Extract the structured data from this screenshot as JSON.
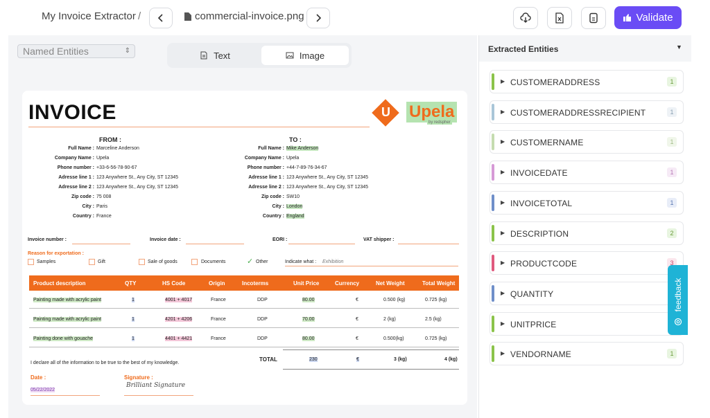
{
  "header": {
    "project": "My Invoice Extractor",
    "separator": "/",
    "file_name": "commercial-invoice.png",
    "validate_label": "Validate"
  },
  "toolbar": {
    "entity_select_value": "Named Entities",
    "tab_text_label": "Text",
    "tab_image_label": "Image",
    "active_tab": "Image"
  },
  "invoice": {
    "title": "INVOICE",
    "logo_text": "Upela",
    "logo_sub": "by redspher",
    "from": {
      "heading": "FROM :",
      "rows": [
        {
          "k": "Full Name :",
          "v": "Marceline Anderson"
        },
        {
          "k": "Company Name :",
          "v": "Upela"
        },
        {
          "k": "Phone number :",
          "v": "+33-6-56-78-90-67"
        },
        {
          "k": "Adresse line 1 :",
          "v": "123 Anywhere St., Any City, ST 12345"
        },
        {
          "k": "Adresse line 2 :",
          "v": "123 Anywhere St., Any City, ST 12345"
        },
        {
          "k": "Zip code :",
          "v": "75 008"
        },
        {
          "k": "City :",
          "v": "Paris"
        },
        {
          "k": "Country :",
          "v": "France"
        }
      ]
    },
    "to": {
      "heading": "TO :",
      "rows": [
        {
          "k": "Full Name :",
          "v": "Mike Anderson"
        },
        {
          "k": "Company Name :",
          "v": "Upela"
        },
        {
          "k": "Phone number :",
          "v": "+44-7-89-76-34-67"
        },
        {
          "k": "Adresse line 1 :",
          "v": "123 Anywhere St., Any City, ST 12345"
        },
        {
          "k": "Adresse line 2 :",
          "v": "123 Anywhere St., Any City, ST 12345"
        },
        {
          "k": "Zip code :",
          "v": "SW10"
        },
        {
          "k": "City :",
          "v": "London"
        },
        {
          "k": "Country :",
          "v": "England"
        }
      ]
    },
    "meta": {
      "invoice_number": "Invoice number :",
      "invoice_date": "Invoice date :",
      "eori": "EORI :",
      "vat_shipper": "VAT shipper :"
    },
    "reason": {
      "heading": "Reason for exportation :",
      "options": [
        "Samples",
        "Gift",
        "Sale of goods",
        "Documents",
        "Other"
      ],
      "checked": "Other",
      "indicate_label": "Indicate what :",
      "indicate_value": "Exhibition"
    },
    "table": {
      "headers": [
        "Product description",
        "QTY",
        "HS Code",
        "Origin",
        "Incoterms",
        "Unit Price",
        "Currency",
        "Net Weight",
        "Total Weight"
      ],
      "rows": [
        [
          "Painting made with acrylic paint",
          "1",
          "4001 + 4017",
          "France",
          "DDP",
          "80.00",
          "€",
          "0.500 (kg)",
          "0.725 (kg)"
        ],
        [
          "Painting made with acrylic paint",
          "1",
          "4201 + 4206",
          "France",
          "DDP",
          "70.00",
          "€",
          "2 (kg)",
          "2.5 (kg)"
        ],
        [
          "Painting done with gouache",
          "1",
          "4401 + 4421",
          "France",
          "DDP",
          "80.00",
          "€",
          "0.500(kg)",
          "0.725 (kg)"
        ]
      ]
    },
    "declaration": "I declare all of the information to be true to the best of my knowledge.",
    "total": {
      "label": "TOTAL",
      "amount": "230",
      "currency": "€",
      "net": "3 (kg)",
      "gross": "4 (kg)"
    },
    "date_label": "Date :",
    "date_value": "05/22/2022",
    "signature_label": "Signature :",
    "signature_value": "Brilliant Signature"
  },
  "entities_panel": {
    "title": "Extracted Entities",
    "items": [
      {
        "label": "CUSTOMERADDRESS",
        "count": "1",
        "color": "#8bc34a",
        "badge_bg": "#e8f5e0",
        "badge_fg": "#6a9a3a"
      },
      {
        "label": "CUSTOMERADDRESSRECIPIENT",
        "count": "1",
        "color": "#a9c6d8",
        "badge_bg": "#eef2f6",
        "badge_fg": "#8aa0b2"
      },
      {
        "label": "CUSTOMERNAME",
        "count": "1",
        "color": "#c5dcb0",
        "badge_bg": "#f0f6ea",
        "badge_fg": "#a3bd8a"
      },
      {
        "label": "INVOICEDATE",
        "count": "1",
        "color": "#d69ad6",
        "badge_bg": "#f6eaf6",
        "badge_fg": "#b67ab6"
      },
      {
        "label": "INVOICETOTAL",
        "count": "1",
        "color": "#6f8fc9",
        "badge_bg": "#e8edf8",
        "badge_fg": "#5a78b0"
      },
      {
        "label": "DESCRIPTION",
        "count": "2",
        "color": "#8bc34a",
        "badge_bg": "#e8f5e0",
        "badge_fg": "#6a9a3a"
      },
      {
        "label": "PRODUCTCODE",
        "count": "3",
        "color": "#e05a7e",
        "badge_bg": "#fbe6ec",
        "badge_fg": "#c8466a"
      },
      {
        "label": "QUANTITY",
        "count": "",
        "color": "#6f8fc9",
        "badge_bg": "#ffffff",
        "badge_fg": "#5a78b0"
      },
      {
        "label": "UNITPRICE",
        "count": "",
        "color": "#8bc34a",
        "badge_bg": "#ffffff",
        "badge_fg": "#6a9a3a"
      },
      {
        "label": "VENDORNAME",
        "count": "1",
        "color": "#8bc34a",
        "badge_bg": "#e8f5e0",
        "badge_fg": "#6a9a3a"
      }
    ]
  },
  "feedback_label": "feedback",
  "colors": {
    "accent": "#6a4cf5",
    "invoice_orange": "#ef6b1c",
    "feedback": "#1fb3d6"
  }
}
